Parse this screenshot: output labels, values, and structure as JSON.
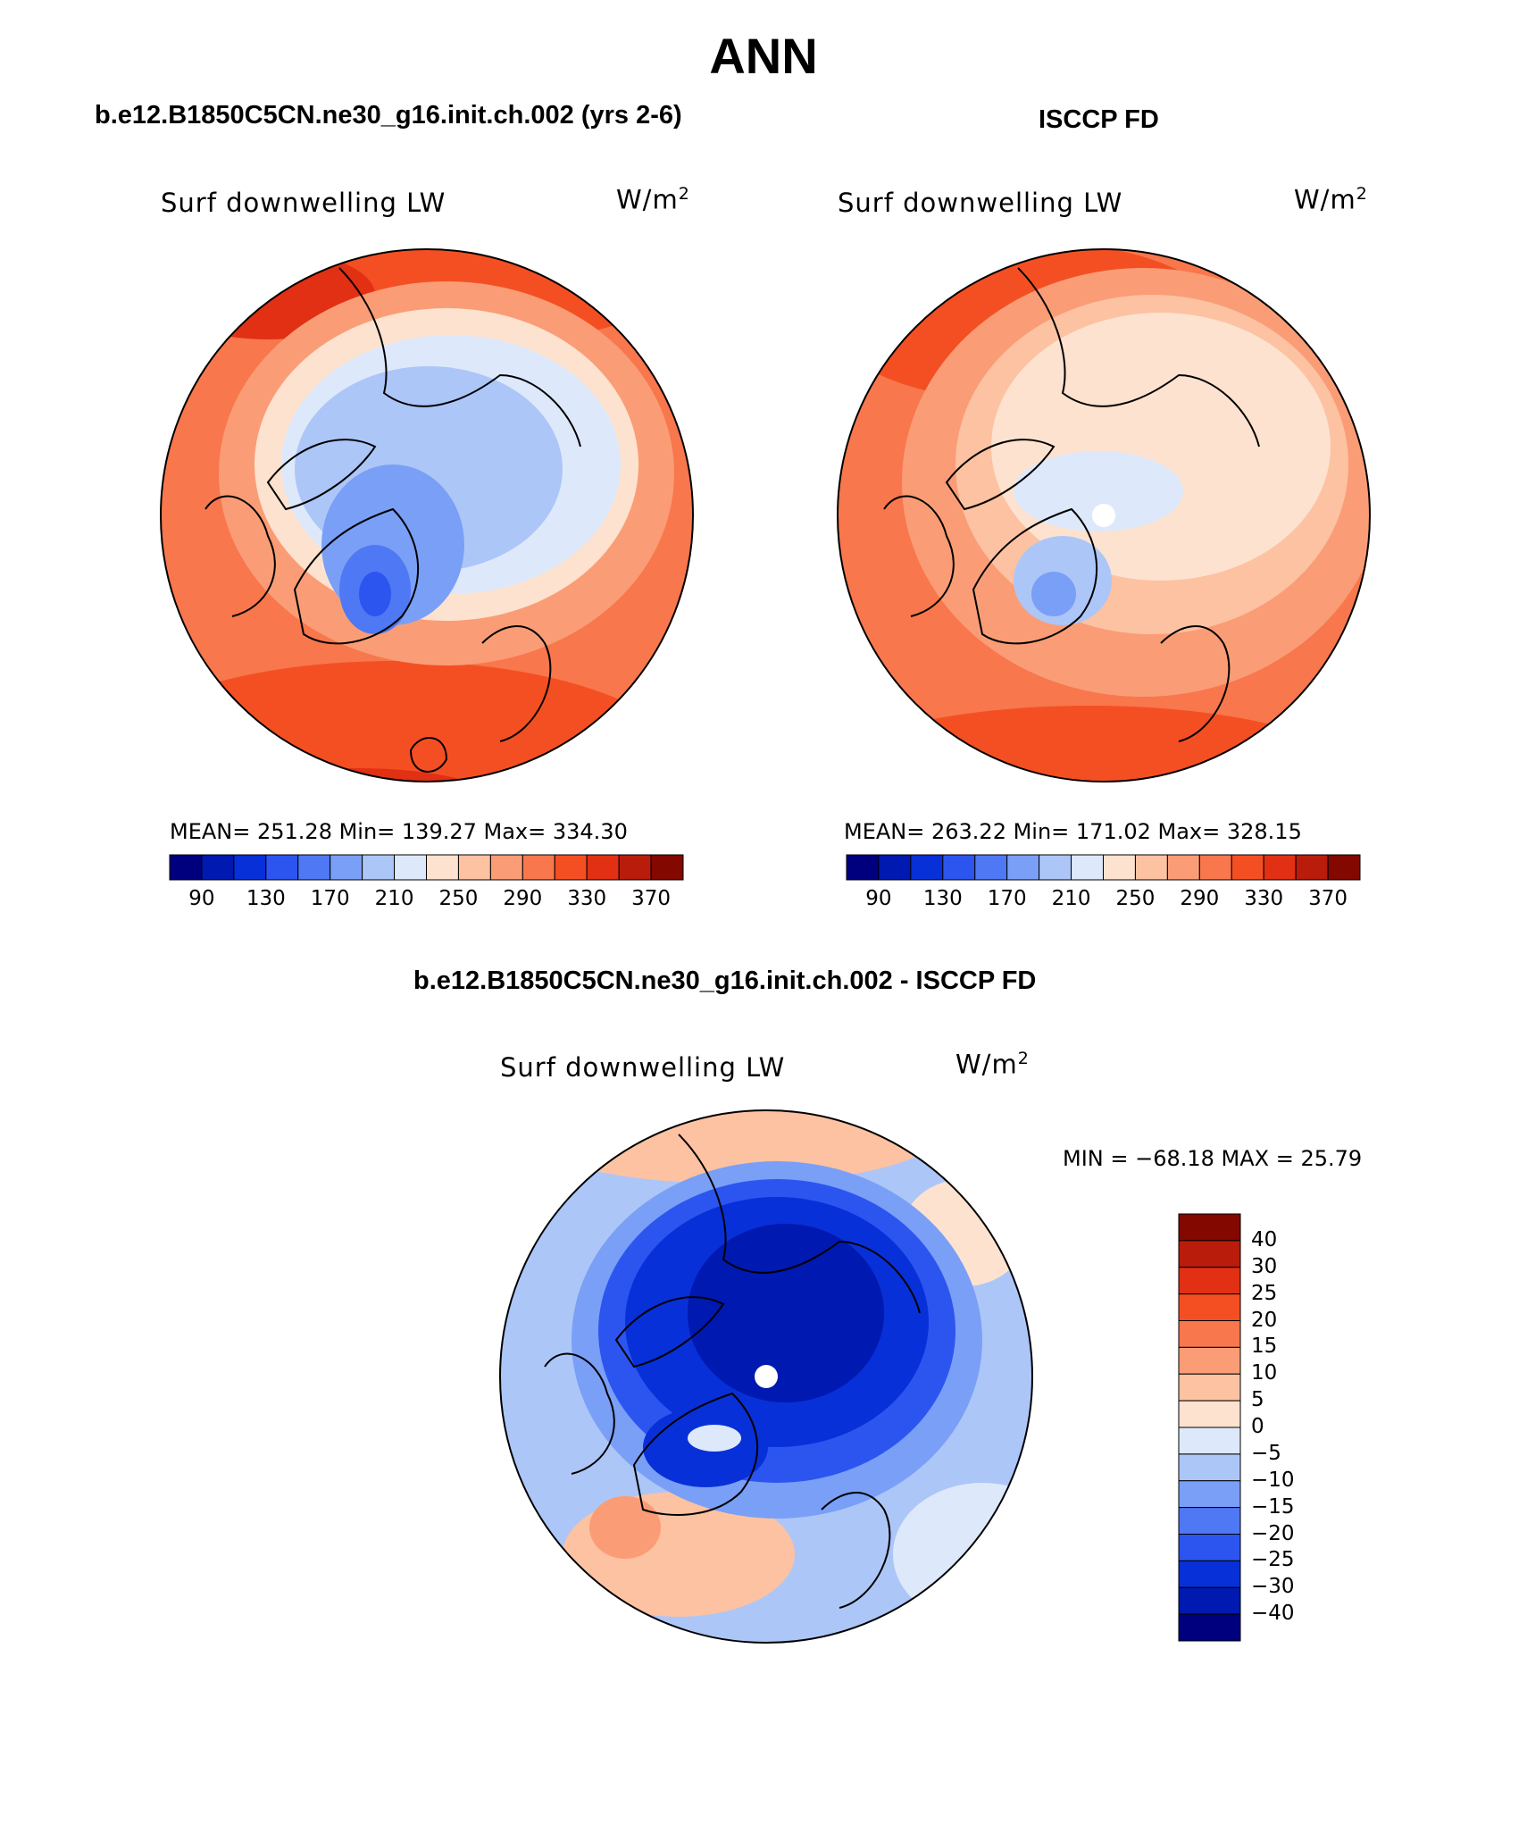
{
  "title": "ANN",
  "panels": [
    {
      "id": "model",
      "title": "b.e12.B1850C5CN.ne30_g16.init.ch.002 (yrs 2-6)",
      "variable": "Surf downwelling LW",
      "units_base": "W/m",
      "units_exp": "2",
      "stats_text": "MEAN= 251.28   Min= 139.27   Max= 334.30",
      "mean": 251.28,
      "min": 139.27,
      "max": 334.3
    },
    {
      "id": "obs",
      "title": "ISCCP FD",
      "variable": "Surf downwelling LW",
      "units_base": "W/m",
      "units_exp": "2",
      "stats_text": "MEAN= 263.22   Min= 171.02   Max= 328.15",
      "mean": 263.22,
      "min": 171.02,
      "max": 328.15
    },
    {
      "id": "diff",
      "title": "b.e12.B1850C5CN.ne30_g16.init.ch.002 - ISCCP FD",
      "variable": "Surf downwelling LW",
      "units_base": "W/m",
      "units_exp": "2",
      "stats_text": "MIN = −68.18 MAX =   25.79",
      "min": -68.18,
      "max": 25.79
    }
  ],
  "colorbar_abs": {
    "labels": [
      "90",
      "130",
      "170",
      "210",
      "250",
      "290",
      "330",
      "370"
    ],
    "colors": [
      "#00007f",
      "#0019b0",
      "#0830d8",
      "#2c55f0",
      "#4f78f4",
      "#7a9ff6",
      "#adc6f8",
      "#dde9fb",
      "#fde2cf",
      "#fcc2a2",
      "#fa9d76",
      "#f8774c",
      "#f44f23",
      "#e13013",
      "#b91c0b",
      "#820800"
    ]
  },
  "colorbar_diff": {
    "labels": [
      "40",
      "30",
      "25",
      "20",
      "15",
      "10",
      "5",
      "0",
      "−5",
      "−10",
      "−15",
      "−20",
      "−25",
      "−30",
      "−40"
    ],
    "colors": [
      "#820800",
      "#b91c0b",
      "#e13013",
      "#f44f23",
      "#f8774c",
      "#fa9d76",
      "#fcc2a2",
      "#fde2cf",
      "#dde9fb",
      "#adc6f8",
      "#7a9ff6",
      "#4f78f4",
      "#2c55f0",
      "#0830d8",
      "#0019b0",
      "#00007f"
    ]
  }
}
